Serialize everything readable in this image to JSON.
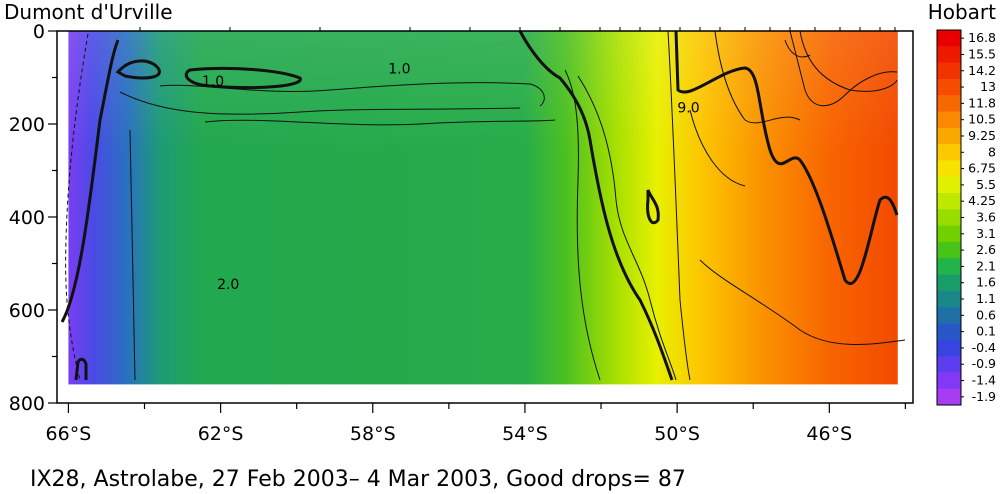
{
  "chart_data": {
    "type": "heatmap",
    "left_label": "Dumont d'Urville",
    "right_label": "Hobart",
    "caption": "IX28, Astrolabe, 27 Feb 2003– 4 Mar 2003, Good drops= 87",
    "y_axis": {
      "ticks": [
        "0",
        "200",
        "400",
        "600",
        "800"
      ],
      "tick_values": [
        0,
        200,
        400,
        600,
        800
      ],
      "range": [
        0,
        800
      ],
      "inverted": true
    },
    "x_axis": {
      "ticks": [
        "66°S",
        "62°S",
        "58°S",
        "54°S",
        "50°S",
        "46°S"
      ],
      "tick_values": [
        -66,
        -62,
        -58,
        -54,
        -50,
        -46
      ],
      "range": [
        -66.3,
        -43.8
      ],
      "data_range": [
        -66,
        -44.2
      ],
      "max_depth": 760
    },
    "contour_labels": [
      {
        "text": "1.0",
        "lat": -62.2,
        "depth": 118
      },
      {
        "text": "1.0",
        "lat": -57.3,
        "depth": 91
      },
      {
        "text": "2.0",
        "lat": -61.8,
        "depth": 555
      },
      {
        "text": "9.0",
        "lat": -49.7,
        "depth": 175
      }
    ],
    "colorbar": {
      "labels": [
        "16.8",
        "15.5",
        "14.2",
        "13",
        "11.8",
        "10.5",
        "9.25",
        "8",
        "6.75",
        "5.5",
        "4.25",
        "3.6",
        "3.1",
        "2.6",
        "2.1",
        "1.6",
        "1.1",
        "0.6",
        "0.1",
        "-0.4",
        "-0.9",
        "-1.4",
        "-1.9"
      ],
      "colors": [
        "#e80000",
        "#ee1a00",
        "#f23300",
        "#f64c00",
        "#f86800",
        "#fa8800",
        "#fba800",
        "#fcc800",
        "#f6e400",
        "#dff000",
        "#bde800",
        "#98dc00",
        "#70d000",
        "#48c418",
        "#22b448",
        "#1a9c68",
        "#1a8888",
        "#2070a8",
        "#2858c8",
        "#3844e0",
        "#5a3ef0",
        "#8238f4",
        "#a83cf4"
      ]
    }
  }
}
